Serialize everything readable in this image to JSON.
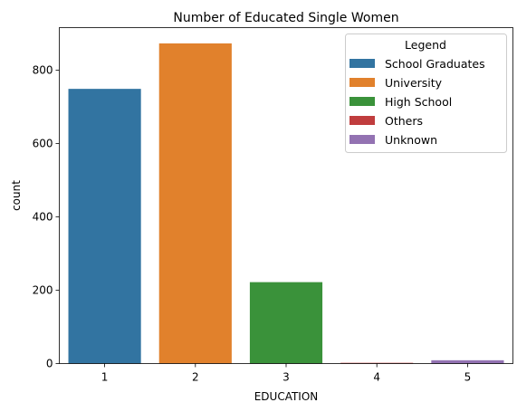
{
  "chart_data": {
    "type": "bar",
    "title": "Number of Educated Single Women",
    "xlabel": "EDUCATION",
    "ylabel": "count",
    "categories": [
      "1",
      "2",
      "3",
      "4",
      "5"
    ],
    "values": [
      749,
      873,
      222,
      2,
      9
    ],
    "colors": [
      "#3274a1",
      "#e1812c",
      "#3a923a",
      "#c03d3e",
      "#9372b2"
    ],
    "ylim": [
      0,
      916
    ],
    "yticks": [
      0,
      200,
      400,
      600,
      800
    ],
    "grid": false,
    "legend": {
      "title": "Legend",
      "placement": "top-right",
      "entries": [
        "School Graduates",
        "University",
        "High School",
        "Others",
        "Unknown"
      ]
    }
  }
}
